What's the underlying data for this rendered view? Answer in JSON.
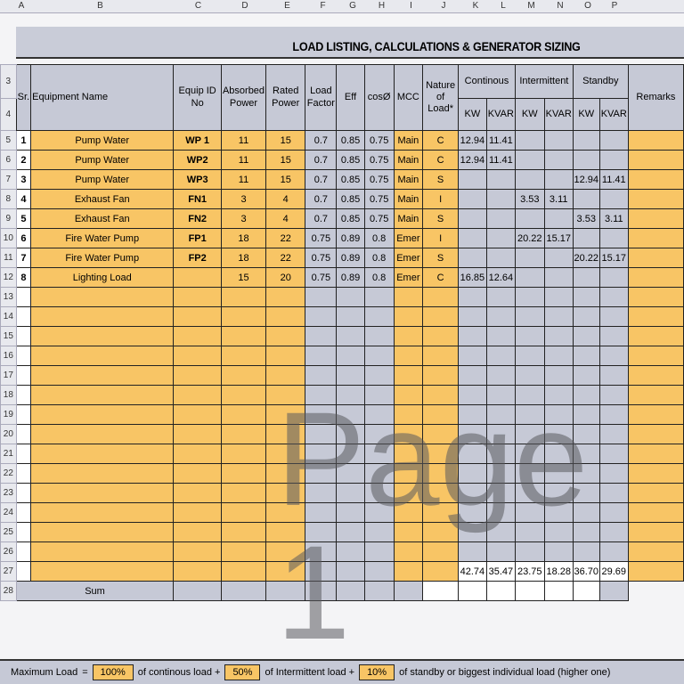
{
  "col_letters": [
    "A",
    "B",
    "C",
    "D",
    "E",
    "F",
    "G",
    "H",
    "I",
    "J",
    "K",
    "L",
    "M",
    "N",
    "O",
    "P"
  ],
  "title": "LOAD LISTING, CALCULATIONS & GENERATOR SIZING",
  "headers": {
    "sr": "Sr.",
    "name": "Equipment Name",
    "id": "Equip ID No",
    "absorbed": "Absorbed Power",
    "rated": "Rated Power",
    "lf": "Load Factor",
    "eff": "Eff",
    "cos": "cosØ",
    "mcc": "MCC",
    "nature": "Nature of Load*",
    "cont": "Continous",
    "inter": "Intermittent",
    "standby": "Standby",
    "kw": "KW",
    "kvar": "KVAR",
    "remarks": "Remarks"
  },
  "rows": [
    [
      "1",
      "Pump Water",
      "WP 1",
      "11",
      "15",
      "0.7",
      "0.85",
      "0.75",
      "Main",
      "C",
      "12.94",
      "11.41",
      "",
      "",
      "",
      ""
    ],
    [
      "2",
      "Pump Water",
      "WP2",
      "11",
      "15",
      "0.7",
      "0.85",
      "0.75",
      "Main",
      "C",
      "12.94",
      "11.41",
      "",
      "",
      "",
      ""
    ],
    [
      "3",
      "Pump Water",
      "WP3",
      "11",
      "15",
      "0.7",
      "0.85",
      "0.75",
      "Main",
      "S",
      "",
      "",
      "",
      "",
      "12.94",
      "11.41"
    ],
    [
      "4",
      "Exhaust Fan",
      "FN1",
      "3",
      "4",
      "0.7",
      "0.85",
      "0.75",
      "Main",
      "I",
      "",
      "",
      "3.53",
      "3.11",
      "",
      ""
    ],
    [
      "5",
      "Exhaust Fan",
      "FN2",
      "3",
      "4",
      "0.7",
      "0.85",
      "0.75",
      "Main",
      "S",
      "",
      "",
      "",
      "",
      "3.53",
      "3.11"
    ],
    [
      "6",
      "Fire Water Pump",
      "FP1",
      "18",
      "22",
      "0.75",
      "0.89",
      "0.8",
      "Emer",
      "I",
      "",
      "",
      "20.22",
      "15.17",
      "",
      ""
    ],
    [
      "7",
      "Fire Water Pump",
      "FP2",
      "18",
      "22",
      "0.75",
      "0.89",
      "0.8",
      "Emer",
      "S",
      "",
      "",
      "",
      "",
      "20.22",
      "15.17"
    ],
    [
      "8",
      "Lighting Load",
      "",
      "15",
      "20",
      "0.75",
      "0.89",
      "0.8",
      "Emer",
      "C",
      "16.85",
      "12.64",
      "",
      "",
      "",
      ""
    ]
  ],
  "totals": [
    "42.74",
    "35.47",
    "23.75",
    "18.28",
    "36.70",
    "29.69"
  ],
  "sum_label": "Sum",
  "max_load": {
    "label": "Maximum Load",
    "eq": "=",
    "cont_pct": "100%",
    "cont_text": "of continous load +",
    "inter_pct": "50%",
    "inter_text": "of Intermittent load +",
    "standby_pct": "10%",
    "standby_text": "of standby or biggest individual load (higher one)"
  },
  "watermark": "Page 1",
  "colors": {
    "input": "#f8c565",
    "calc": "#c6c9d6"
  }
}
